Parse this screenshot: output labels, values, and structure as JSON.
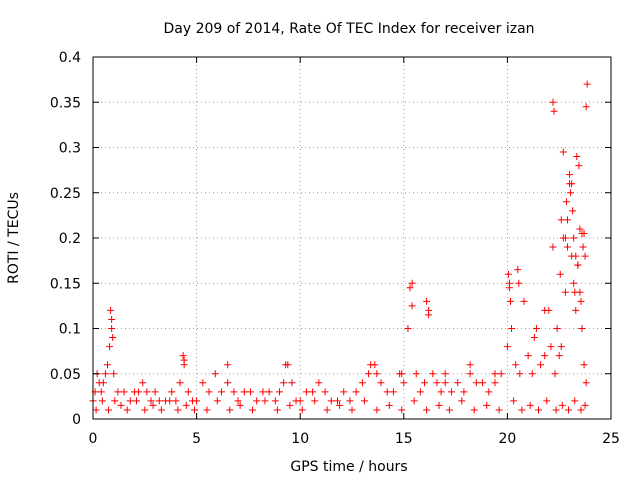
{
  "chart_data": {
    "type": "scatter",
    "title": "Day 209 of 2014, Rate Of TEC Index for receiver izan",
    "xlabel": "GPS time / hours",
    "ylabel": "ROTI / TECUs",
    "xlim": [
      0,
      25
    ],
    "ylim": [
      0,
      0.4
    ],
    "xticks": [
      0,
      5,
      10,
      15,
      20,
      25
    ],
    "yticks": [
      0,
      0.05,
      0.1,
      0.15,
      0.2,
      0.25,
      0.3,
      0.35,
      0.4
    ],
    "xtick_labels": [
      "0",
      "5",
      "10",
      "15",
      "20",
      "25"
    ],
    "ytick_labels": [
      "0",
      "0.05",
      "0.1",
      "0.15",
      "0.2",
      "0.25",
      "0.3",
      "0.35",
      "0.4"
    ],
    "grid": true,
    "marker": "+",
    "color": "#ff0000",
    "series": [
      {
        "name": "ROTI",
        "x": [
          0.0,
          0.1,
          0.2,
          0.3,
          0.4,
          0.5,
          0.6,
          0.7,
          0.8,
          0.9,
          1.0,
          1.2,
          1.5,
          1.8,
          2.0,
          2.2,
          2.4,
          2.6,
          2.8,
          3.0,
          3.2,
          3.5,
          3.8,
          4.0,
          4.2,
          4.4,
          4.6,
          4.8,
          5.0,
          5.3,
          5.6,
          5.9,
          6.2,
          6.5,
          6.8,
          7.0,
          7.3,
          7.6,
          7.9,
          8.2,
          8.5,
          8.8,
          9.0,
          9.2,
          9.4,
          9.6,
          9.8,
          10.0,
          10.3,
          10.6,
          10.9,
          11.2,
          11.5,
          11.8,
          12.1,
          12.4,
          12.7,
          13.0,
          13.3,
          13.6,
          13.9,
          14.2,
          14.5,
          14.8,
          15.0,
          15.2,
          15.4,
          15.6,
          15.8,
          16.0,
          16.2,
          16.4,
          16.6,
          16.8,
          17.0,
          17.3,
          17.6,
          17.9,
          18.2,
          18.5,
          18.8,
          19.1,
          19.4,
          19.7,
          20.0,
          20.1,
          20.2,
          20.4,
          20.6,
          20.8,
          21.0,
          21.2,
          21.4,
          21.6,
          21.8,
          22.0,
          22.1,
          22.2,
          22.3,
          22.4,
          22.5,
          22.6,
          22.7,
          22.8,
          22.9,
          23.0,
          23.1,
          23.2,
          23.3,
          23.4,
          23.5,
          23.6,
          23.7,
          23.8,
          0.15,
          0.45,
          0.75,
          1.05,
          1.35,
          1.65,
          2.1,
          2.5,
          2.9,
          3.3,
          3.7,
          4.1,
          4.5,
          4.9,
          5.5,
          6.0,
          6.6,
          7.1,
          7.7,
          8.3,
          8.9,
          9.5,
          10.1,
          10.7,
          11.3,
          11.9,
          12.5,
          13.1,
          13.7,
          14.3,
          14.9,
          15.5,
          16.1,
          16.7,
          17.2,
          17.8,
          18.4,
          19.0,
          19.6,
          20.3,
          20.7,
          21.1,
          21.5,
          21.9,
          22.35,
          22.65,
          22.95,
          23.25,
          23.55,
          23.75,
          0.85,
          0.9,
          0.95,
          4.35,
          4.4,
          15.3,
          15.4,
          16.1,
          16.2,
          20.05,
          20.1,
          20.15,
          20.5,
          20.55,
          22.2,
          22.25,
          22.6,
          22.7,
          22.8,
          22.85,
          23.0,
          23.05,
          23.1,
          23.15,
          23.2,
          23.3,
          23.35,
          23.45,
          23.5,
          23.6,
          23.65,
          23.7,
          23.75,
          23.8,
          23.85,
          22.55,
          22.9,
          23.25,
          23.4,
          23.55,
          21.8,
          21.3,
          9.3,
          6.5,
          13.4,
          13.7,
          14.9,
          17.0,
          18.2,
          19.4
        ],
        "y": [
          0.02,
          0.03,
          0.05,
          0.04,
          0.03,
          0.04,
          0.05,
          0.06,
          0.08,
          0.1,
          0.05,
          0.03,
          0.03,
          0.02,
          0.03,
          0.03,
          0.04,
          0.03,
          0.02,
          0.03,
          0.02,
          0.02,
          0.03,
          0.02,
          0.04,
          0.06,
          0.03,
          0.02,
          0.02,
          0.04,
          0.03,
          0.05,
          0.03,
          0.04,
          0.03,
          0.02,
          0.03,
          0.03,
          0.02,
          0.03,
          0.03,
          0.02,
          0.03,
          0.04,
          0.06,
          0.04,
          0.02,
          0.02,
          0.03,
          0.03,
          0.04,
          0.03,
          0.02,
          0.02,
          0.03,
          0.02,
          0.03,
          0.04,
          0.05,
          0.06,
          0.04,
          0.03,
          0.03,
          0.05,
          0.04,
          0.1,
          0.15,
          0.05,
          0.03,
          0.04,
          0.12,
          0.05,
          0.04,
          0.03,
          0.04,
          0.03,
          0.04,
          0.03,
          0.05,
          0.04,
          0.04,
          0.03,
          0.04,
          0.05,
          0.08,
          0.15,
          0.1,
          0.06,
          0.05,
          0.13,
          0.07,
          0.05,
          0.1,
          0.06,
          0.07,
          0.12,
          0.08,
          0.19,
          0.05,
          0.1,
          0.07,
          0.08,
          0.2,
          0.14,
          0.22,
          0.26,
          0.18,
          0.15,
          0.12,
          0.17,
          0.14,
          0.1,
          0.06,
          0.04,
          0.01,
          0.02,
          0.01,
          0.02,
          0.015,
          0.01,
          0.02,
          0.01,
          0.015,
          0.01,
          0.02,
          0.01,
          0.015,
          0.01,
          0.01,
          0.02,
          0.01,
          0.015,
          0.01,
          0.02,
          0.01,
          0.015,
          0.01,
          0.02,
          0.01,
          0.015,
          0.01,
          0.02,
          0.01,
          0.015,
          0.01,
          0.02,
          0.01,
          0.015,
          0.01,
          0.02,
          0.01,
          0.015,
          0.01,
          0.02,
          0.01,
          0.015,
          0.01,
          0.02,
          0.01,
          0.015,
          0.01,
          0.02,
          0.01,
          0.015,
          0.12,
          0.11,
          0.09,
          0.07,
          0.065,
          0.145,
          0.125,
          0.13,
          0.115,
          0.16,
          0.145,
          0.13,
          0.165,
          0.15,
          0.35,
          0.34,
          0.22,
          0.295,
          0.2,
          0.24,
          0.27,
          0.25,
          0.26,
          0.23,
          0.2,
          0.18,
          0.29,
          0.28,
          0.21,
          0.205,
          0.19,
          0.205,
          0.18,
          0.345,
          0.37,
          0.16,
          0.19,
          0.14,
          0.17,
          0.13,
          0.12,
          0.09,
          0.06,
          0.06,
          0.06,
          0.05,
          0.05,
          0.05,
          0.06,
          0.05
        ]
      }
    ]
  }
}
